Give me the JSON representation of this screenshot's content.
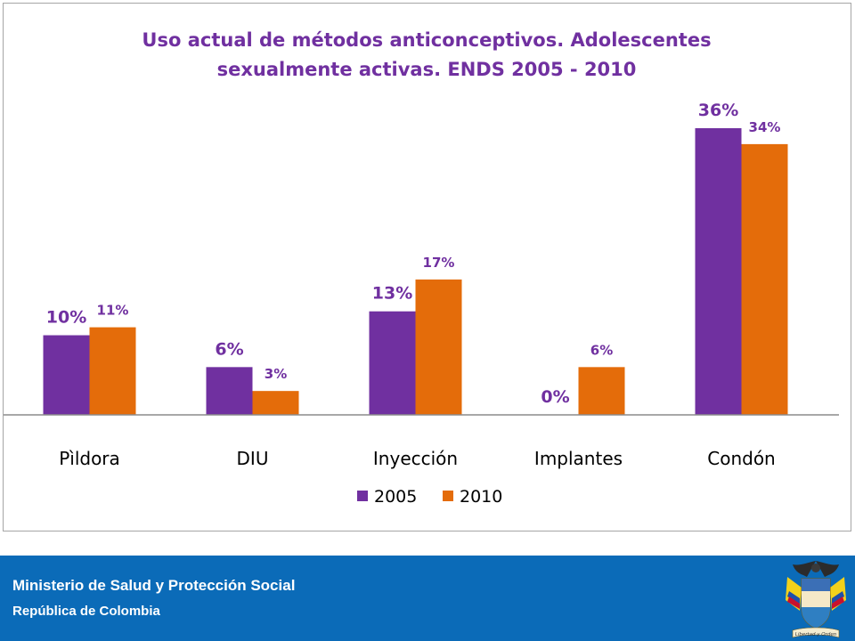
{
  "chart_data": {
    "type": "bar",
    "title": "Uso actual de métodos anticonceptivos. Adolescentes sexualmente activas. ENDS 2005 - 2010",
    "title_lines": [
      "Uso actual de métodos anticonceptivos. Adolescentes",
      "sexualmente activas. ENDS 2005 - 2010"
    ],
    "categories": [
      "Pìldora",
      "DIU",
      "Inyección",
      "Implantes",
      "Condón"
    ],
    "series": [
      {
        "name": "2005",
        "values": [
          10,
          6,
          13,
          0,
          36
        ],
        "labels": [
          "10%",
          "6%",
          "13%",
          "0%",
          "36%"
        ],
        "color": "#7030a0"
      },
      {
        "name": "2010",
        "values": [
          11,
          3,
          17,
          6,
          34
        ],
        "labels": [
          "11%",
          "3%",
          "17%",
          "6%",
          "34%"
        ],
        "color": "#e46c0a"
      }
    ],
    "ylim": [
      0,
      36
    ],
    "xlabel": "",
    "ylabel": "",
    "grid": false,
    "legend_position": "bottom",
    "label_color": "#7030a0"
  },
  "footer": {
    "ministry": "Ministerio de Salud y Protección Social",
    "country": "República de Colombia",
    "seal_motto": "Libertad y Orden",
    "background_color": "#0b6bb8"
  }
}
